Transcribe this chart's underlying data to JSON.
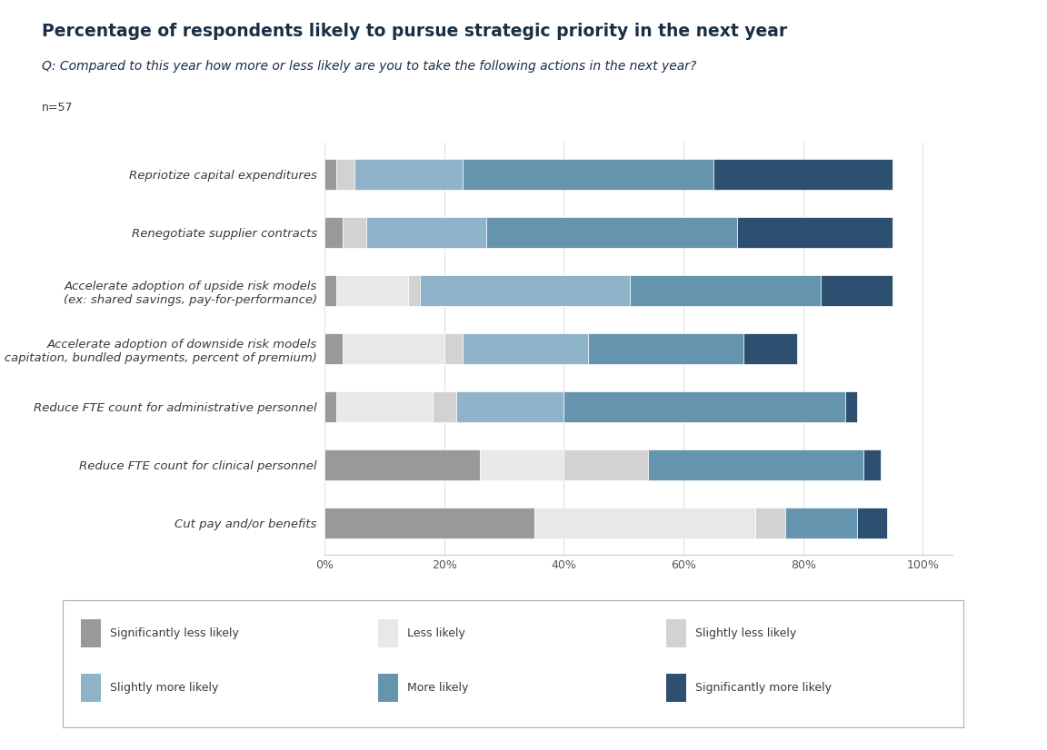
{
  "title": "Percentage of respondents likely to pursue strategic priority in the next year",
  "subtitle": "Q: Compared to this year how more or less likely are you to take the following actions in the next year?",
  "n_label": "n=57",
  "categories": [
    "Repriotize capital expenditures",
    "Renegotiate supplier contracts",
    "Accelerate adoption of upside risk models\n(ex: shared savings, pay-for-performance)",
    "Accelerate adoption of downside risk models\n(ex: capitation, bundled payments, percent of premium)",
    "Reduce FTE count for administrative personnel",
    "Reduce FTE count for clinical personnel",
    "Cut pay and/or benefits"
  ],
  "series_names": [
    "Significantly less likely",
    "Less likely",
    "Slightly less likely",
    "Slightly more likely",
    "More likely",
    "Significantly more likely"
  ],
  "colors": [
    "#999999",
    "#e8e8e8",
    "#d2d2d2",
    "#8fb3c8",
    "#6494ae",
    "#2e5070"
  ],
  "bar_data": [
    [
      2,
      0,
      3,
      18,
      42,
      30
    ],
    [
      3,
      0,
      4,
      20,
      42,
      26
    ],
    [
      2,
      12,
      2,
      35,
      32,
      12
    ],
    [
      3,
      17,
      3,
      21,
      26,
      9
    ],
    [
      2,
      16,
      4,
      18,
      47,
      2
    ],
    [
      26,
      14,
      14,
      0,
      36,
      3
    ],
    [
      35,
      37,
      5,
      0,
      12,
      5
    ]
  ],
  "background_color": "#ffffff",
  "title_color": "#1a2e44",
  "subtitle_color": "#1a2e44",
  "text_color": "#3a3a3a",
  "title_fontsize": 13.5,
  "subtitle_fontsize": 10,
  "n_fontsize": 9,
  "tick_fontsize": 9,
  "label_fontsize": 9.5,
  "legend_fontsize": 9
}
